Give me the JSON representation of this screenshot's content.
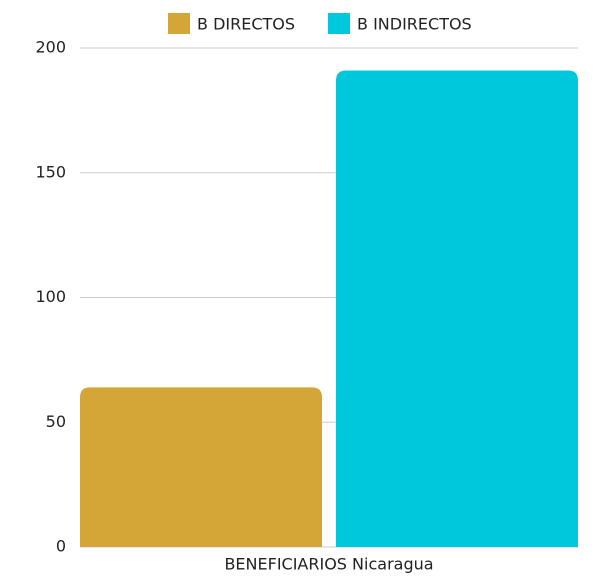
{
  "chart_data": {
    "type": "bar",
    "categories": [
      "BENEFICIARIOS Nicaragua"
    ],
    "series": [
      {
        "name": "B DIRECTOS",
        "color": "#d4a637",
        "values": [
          64
        ]
      },
      {
        "name": "B INDIRECTOS",
        "color": "#00c8dc",
        "values": [
          191
        ]
      }
    ],
    "ylim": [
      0,
      200
    ],
    "yticks": [
      0,
      50,
      100,
      150,
      200
    ],
    "grid": true,
    "legend": "top"
  }
}
